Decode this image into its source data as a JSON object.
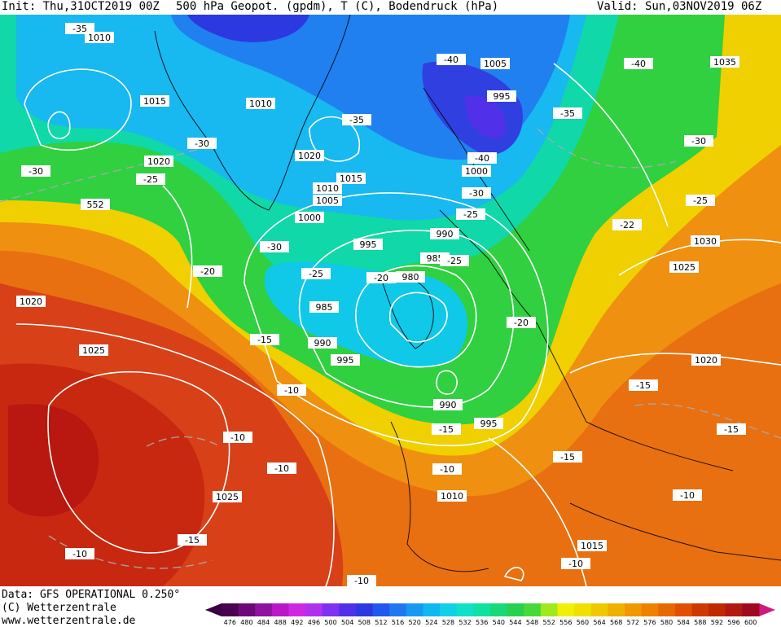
{
  "header": {
    "init": "Init: Thu,31OCT2019 00Z",
    "title": "500 hPa Geopot. (gpdm), T (C), Bodendruck (hPa)",
    "valid": "Valid: Sun,03NOV2019 06Z"
  },
  "footer": {
    "data": "Data: GFS OPERATIONAL 0.250°",
    "copyright": "(C) Wetterzentrale",
    "url": "www.wetterzentrale.de"
  },
  "colorbar": {
    "labels": [
      476,
      480,
      484,
      488,
      492,
      496,
      500,
      504,
      508,
      512,
      516,
      520,
      524,
      528,
      532,
      536,
      540,
      544,
      548,
      552,
      556,
      560,
      564,
      568,
      572,
      576,
      580,
      584,
      588,
      592,
      596,
      600
    ],
    "colors": [
      "#4a0050",
      "#6e0878",
      "#9010a0",
      "#b818c8",
      "#d028e0",
      "#b030f0",
      "#8030f0",
      "#5030e8",
      "#2c38e0",
      "#2058f0",
      "#2078f0",
      "#1898f0",
      "#10b8f0",
      "#10d0e8",
      "#10e0c8",
      "#10e0a0",
      "#18d878",
      "#28d050",
      "#48d838",
      "#a0e820",
      "#f0f000",
      "#f0e000",
      "#f0c800",
      "#f0b000",
      "#f09800",
      "#f08000",
      "#e86800",
      "#e05000",
      "#d03800",
      "#c02800",
      "#b01810",
      "#a00820"
    ]
  },
  "map": {
    "labels": [
      "-35",
      "1010",
      "1015",
      "1010",
      "-35",
      "-40",
      "1005",
      "995",
      "-35",
      "-40",
      "1035",
      "-30",
      "1020",
      "-40",
      "1000",
      "-30",
      "-30",
      "-25",
      "1020",
      "1015",
      "1010",
      "1005",
      "-30",
      "-25",
      "1000",
      "-25",
      "552",
      "-22",
      "995",
      "990",
      "1030",
      "-30",
      "985",
      "-25",
      "1025",
      "-25",
      "-20",
      "980",
      "-20",
      "1020",
      "985",
      "-20",
      "-15",
      "990",
      "995",
      "1025",
      "1020",
      "-15",
      "-10",
      "990",
      "-15",
      "995",
      "-15",
      "-10",
      "-10",
      "-10",
      "-15",
      "1010",
      "1025",
      "-10",
      "-15",
      "1015",
      "-10",
      "-10",
      "-10"
    ]
  }
}
